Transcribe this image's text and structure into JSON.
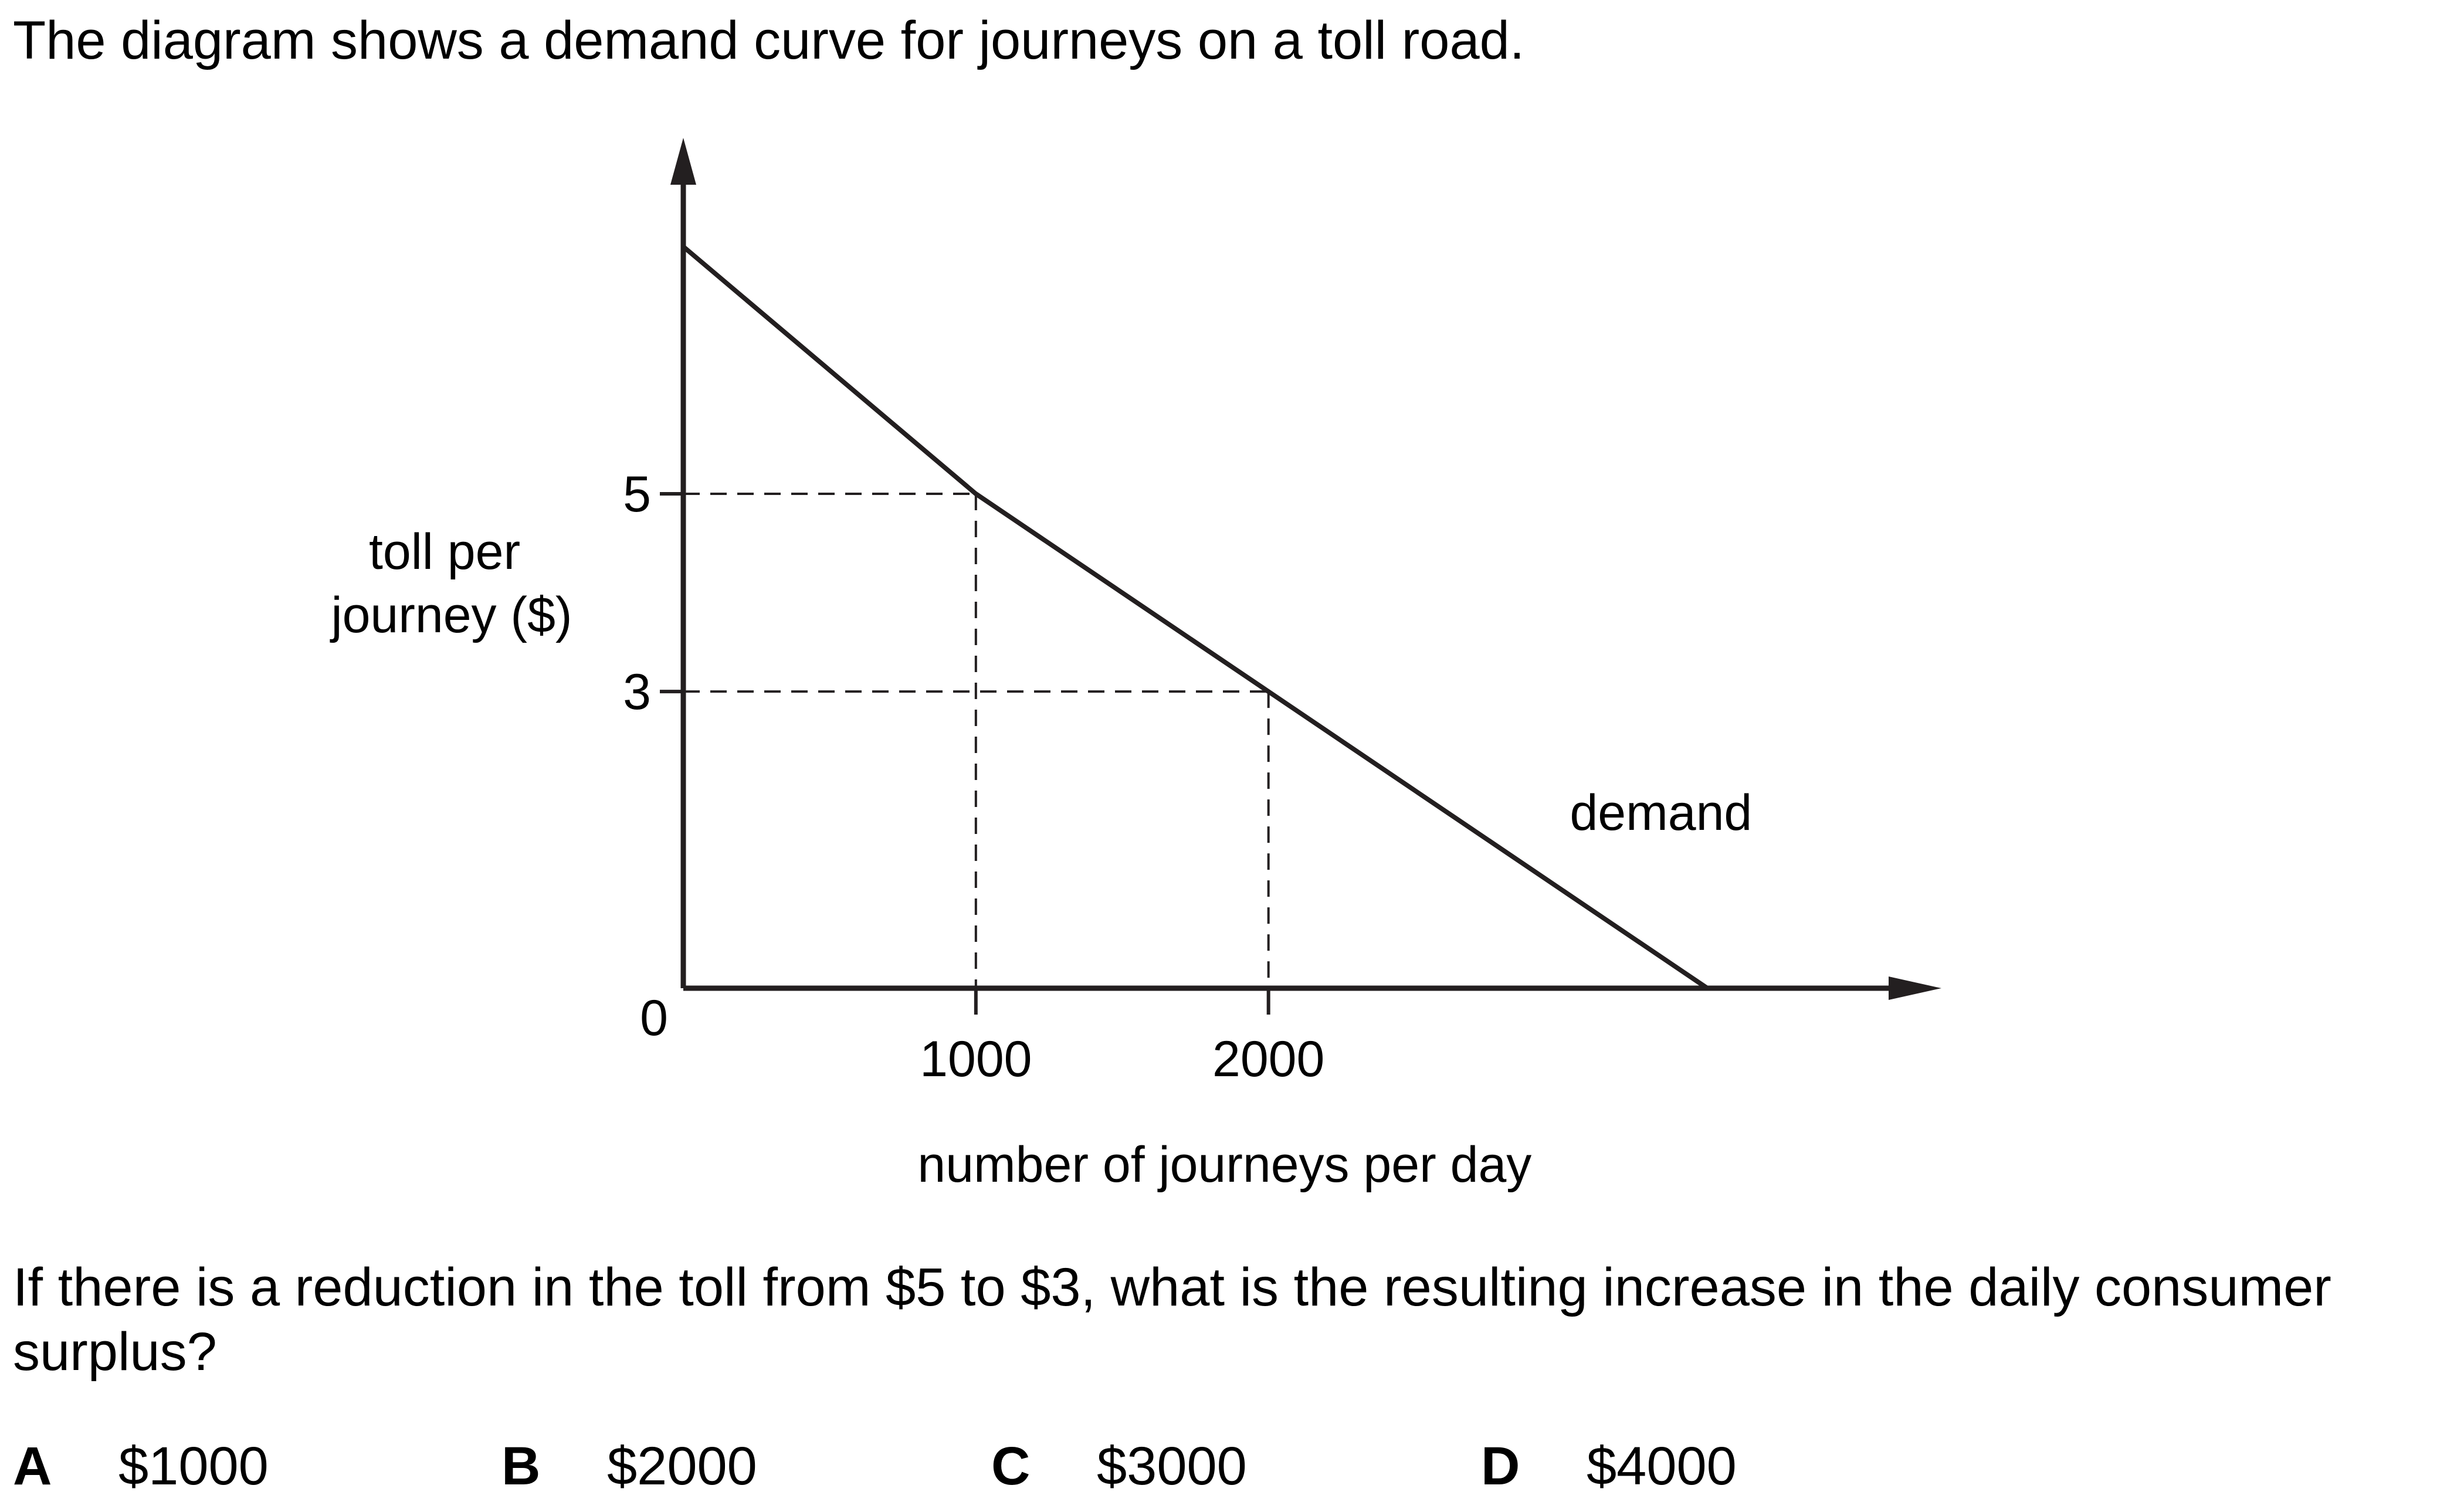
{
  "intro": "The diagram shows a demand curve for journeys on a toll road.",
  "question": "If there is a reduction in the toll from $5 to $3, what is the resulting increase in the daily consumer surplus?",
  "options": [
    {
      "letter": "A",
      "text": "$1000"
    },
    {
      "letter": "B",
      "text": "$2000"
    },
    {
      "letter": "C",
      "text": "$3000"
    },
    {
      "letter": "D",
      "text": "$4000"
    }
  ],
  "chart_data": {
    "type": "line",
    "ylabel_lines": [
      "toll per",
      "journey ($)"
    ],
    "xlabel": "number of journeys per day",
    "origin_label": "0",
    "x_ticks": [
      {
        "value": 1000,
        "label": "1000"
      },
      {
        "value": 2000,
        "label": "2000"
      }
    ],
    "y_ticks": [
      {
        "value": 3,
        "label": "3"
      },
      {
        "value": 5,
        "label": "5"
      }
    ],
    "series": [
      {
        "name": "demand",
        "x": [
          0,
          1000,
          2000,
          3500
        ],
        "y": [
          7.5,
          5,
          3,
          0
        ]
      }
    ],
    "reference_points": [
      {
        "x": 1000,
        "y": 5
      },
      {
        "x": 2000,
        "y": 3
      }
    ],
    "reference_line_style": "dashed",
    "xlim": [
      0,
      4300
    ],
    "ylim": [
      0,
      8.6
    ],
    "grid": false,
    "colors": {
      "line": "#231f20",
      "text": "#000000"
    }
  }
}
